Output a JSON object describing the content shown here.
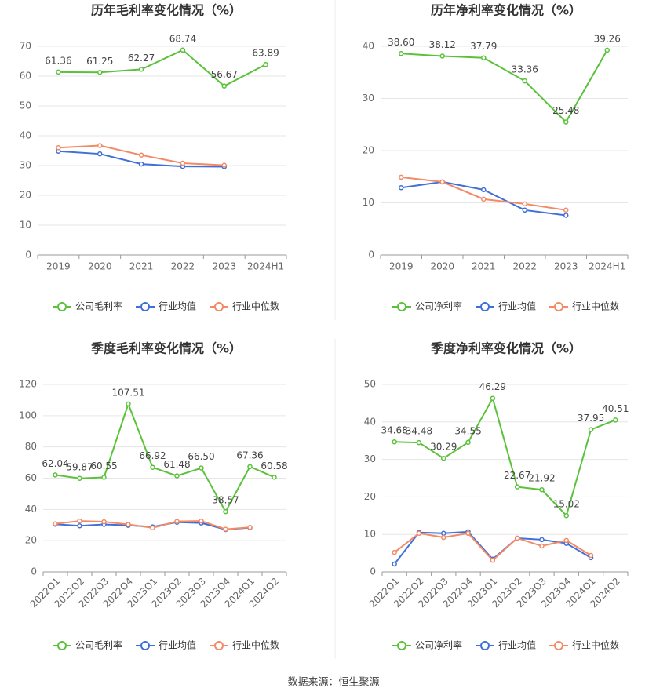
{
  "chart_data": [
    {
      "type": "line",
      "title": "历年毛利率变化情况（%）",
      "categories": [
        "2019",
        "2020",
        "2021",
        "2022",
        "2023",
        "2024H1"
      ],
      "series": [
        {
          "name": "公司毛利率",
          "color": "#5ac23a",
          "values": [
            61.36,
            61.25,
            62.27,
            68.74,
            56.67,
            63.89
          ],
          "value_labels": [
            "61.36",
            "61.25",
            "62.27",
            "68.74",
            "56.67",
            "63.89"
          ]
        },
        {
          "name": "行业均值",
          "color": "#3f6fd8",
          "values": [
            34.8,
            33.9,
            30.5,
            29.7,
            29.6,
            null
          ]
        },
        {
          "name": "行业中位数",
          "color": "#f28a66",
          "values": [
            36.0,
            36.7,
            33.5,
            30.8,
            30.1,
            null
          ]
        }
      ],
      "ylim": [
        0,
        70
      ],
      "yticks": [
        0,
        10,
        20,
        30,
        40,
        50,
        60,
        70
      ],
      "grid": true
    },
    {
      "type": "line",
      "title": "历年净利率变化情况（%）",
      "categories": [
        "2019",
        "2020",
        "2021",
        "2022",
        "2023",
        "2024H1"
      ],
      "series": [
        {
          "name": "公司净利率",
          "color": "#5ac23a",
          "values": [
            38.6,
            38.12,
            37.79,
            33.36,
            25.48,
            39.26
          ],
          "value_labels": [
            "38.60",
            "38.12",
            "37.79",
            "33.36",
            "25.48",
            "39.26"
          ]
        },
        {
          "name": "行业均值",
          "color": "#3f6fd8",
          "values": [
            12.9,
            14.0,
            12.5,
            8.6,
            7.6,
            null
          ]
        },
        {
          "name": "行业中位数",
          "color": "#f28a66",
          "values": [
            14.9,
            14.0,
            10.7,
            9.8,
            8.6,
            null
          ]
        }
      ],
      "ylim": [
        0,
        40
      ],
      "yticks": [
        0,
        10,
        20,
        30,
        40
      ],
      "grid": true
    },
    {
      "type": "line",
      "title": "季度毛利率变化情况（%）",
      "categories": [
        "2022Q1",
        "2022Q2",
        "2022Q3",
        "2022Q4",
        "2023Q1",
        "2023Q2",
        "2023Q3",
        "2023Q4",
        "2024Q1",
        "2024Q2"
      ],
      "series": [
        {
          "name": "公司毛利率",
          "color": "#5ac23a",
          "values": [
            62.04,
            59.87,
            60.55,
            107.51,
            66.92,
            61.48,
            66.5,
            38.57,
            67.36,
            60.58
          ],
          "value_labels": [
            "62.04",
            "59.87",
            "60.55",
            "107.51",
            "66.92",
            "61.48",
            "66.50",
            "38.57",
            "67.36",
            "60.58"
          ]
        },
        {
          "name": "行业均值",
          "color": "#3f6fd8",
          "values": [
            30.5,
            29.5,
            30.4,
            29.8,
            28.8,
            31.8,
            31.3,
            27.1,
            28.3,
            null
          ]
        },
        {
          "name": "行业中位数",
          "color": "#f28a66",
          "values": [
            30.8,
            32.6,
            32.1,
            30.4,
            28.2,
            32.3,
            32.6,
            27.3,
            28.5,
            null
          ]
        }
      ],
      "ylim": [
        0,
        120
      ],
      "yticks": [
        0,
        20,
        40,
        60,
        80,
        100,
        120
      ],
      "grid": true
    },
    {
      "type": "line",
      "title": "季度净利率变化情况（%）",
      "categories": [
        "2022Q1",
        "2022Q2",
        "2022Q3",
        "2022Q4",
        "2023Q1",
        "2023Q2",
        "2023Q3",
        "2023Q4",
        "2024Q1",
        "2024Q2"
      ],
      "series": [
        {
          "name": "公司净利率",
          "color": "#5ac23a",
          "values": [
            34.68,
            34.48,
            30.29,
            34.55,
            46.29,
            22.67,
            21.92,
            15.02,
            37.95,
            40.51
          ],
          "value_labels": [
            "34.68",
            "34.48",
            "30.29",
            "34.55",
            "46.29",
            "22.67",
            "21.92",
            "15.02",
            "37.95",
            "40.51"
          ]
        },
        {
          "name": "行业均值",
          "color": "#3f6fd8",
          "values": [
            2.1,
            10.5,
            10.3,
            10.7,
            3.4,
            9.0,
            8.6,
            7.6,
            3.8,
            null
          ]
        },
        {
          "name": "行业中位数",
          "color": "#f28a66",
          "values": [
            5.2,
            10.3,
            9.2,
            10.3,
            3.1,
            9.0,
            6.9,
            8.4,
            4.4,
            null
          ]
        }
      ],
      "ylim": [
        0,
        50
      ],
      "yticks": [
        0,
        10,
        20,
        30,
        40,
        50
      ],
      "grid": true
    }
  ],
  "source": "数据来源：恒生聚源"
}
